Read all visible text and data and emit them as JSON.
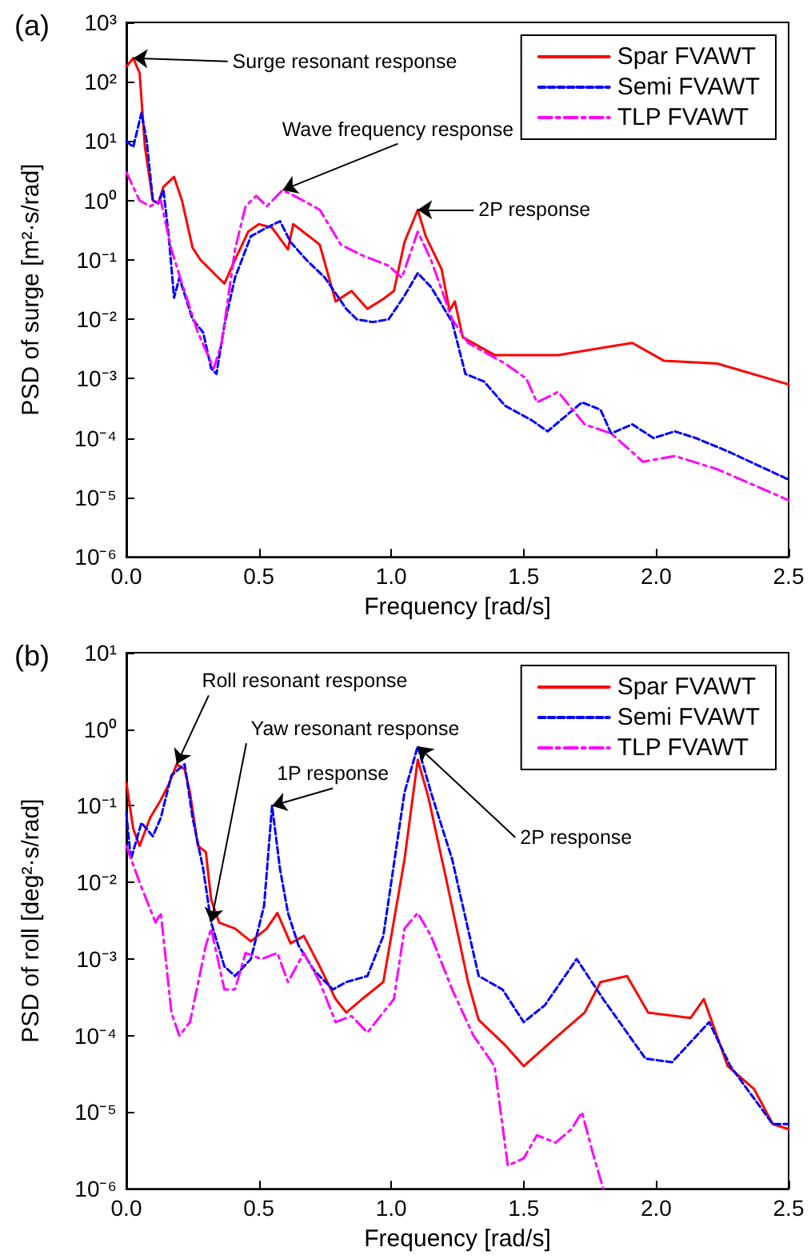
{
  "chart_data": [
    {
      "type": "line",
      "title": "(a)",
      "xlabel": "Frequency [rad/s]",
      "ylabel": "PSD of surge [m²·s/rad]",
      "xlim": [
        0,
        2.5
      ],
      "xticks": [
        {
          "value": 0,
          "label": "0.0"
        },
        {
          "value": 0.5,
          "label": "0.5"
        },
        {
          "value": 1,
          "label": "1.0"
        },
        {
          "value": 1.5,
          "label": "1.5"
        },
        {
          "value": 2,
          "label": "2.0"
        },
        {
          "value": 2.5,
          "label": "2.5"
        }
      ],
      "ylim": [
        1e-06,
        1000
      ],
      "yticks": [
        {
          "value": 1e-06,
          "label": "10⁻⁶"
        },
        {
          "value": 1e-05,
          "label": "10⁻⁵"
        },
        {
          "value": 0.0001,
          "label": "10⁻⁴"
        },
        {
          "value": 0.001,
          "label": "10⁻³"
        },
        {
          "value": 0.01,
          "label": "10⁻²"
        },
        {
          "value": 0.1,
          "label": "10⁻¹"
        },
        {
          "value": 1,
          "label": "10⁰"
        },
        {
          "value": 10,
          "label": "10¹"
        },
        {
          "value": 100,
          "label": "10²"
        },
        {
          "value": 1000,
          "label": "10³"
        }
      ],
      "log": "y",
      "grid": false,
      "legend": "top right",
      "marker": "none",
      "series": [
        {
          "name": "Spar FVAWT",
          "color": "#ff0000",
          "line_style": "solid",
          "x": [
            0,
            0.026,
            0.05,
            0.07,
            0.1,
            0.12,
            0.14,
            0.18,
            0.21,
            0.25,
            0.28,
            0.33,
            0.37,
            0.41,
            0.46,
            0.5,
            0.55,
            0.61,
            0.63,
            0.69,
            0.73,
            0.79,
            0.85,
            0.91,
            0.97,
            1.01,
            1.05,
            1.1,
            1.13,
            1.19,
            1.22,
            1.24,
            1.27,
            1.39,
            1.63,
            1.83,
            1.91,
            2.03,
            2.23,
            2.5
          ],
          "values": [
            180,
            250,
            140,
            8,
            1,
            0.9,
            1.7,
            2.5,
            1,
            0.16,
            0.1,
            0.06,
            0.04,
            0.1,
            0.3,
            0.4,
            0.35,
            0.15,
            0.4,
            0.25,
            0.18,
            0.02,
            0.03,
            0.015,
            0.022,
            0.03,
            0.2,
            0.7,
            0.25,
            0.07,
            0.014,
            0.02,
            0.005,
            0.0025,
            0.0025,
            0.0035,
            0.004,
            0.002,
            0.0018,
            0.0008
          ]
        },
        {
          "name": "Semi FVAWT",
          "color": "#0000ff",
          "line_style": "dashed",
          "x": [
            0,
            0.026,
            0.057,
            0.077,
            0.1,
            0.12,
            0.14,
            0.16,
            0.18,
            0.2,
            0.25,
            0.29,
            0.32,
            0.34,
            0.37,
            0.41,
            0.47,
            0.53,
            0.58,
            0.62,
            0.68,
            0.75,
            0.83,
            0.87,
            0.93,
            0.99,
            1.05,
            1.1,
            1.15,
            1.23,
            1.28,
            1.35,
            1.43,
            1.53,
            1.59,
            1.72,
            1.79,
            1.83,
            1.91,
            1.99,
            2.07,
            2.15,
            2.27,
            2.5
          ],
          "values": [
            10,
            8,
            30,
            10,
            1,
            0.9,
            1.5,
            0.25,
            0.023,
            0.05,
            0.01,
            0.006,
            0.0015,
            0.0012,
            0.008,
            0.05,
            0.25,
            0.35,
            0.45,
            0.2,
            0.1,
            0.05,
            0.015,
            0.01,
            0.009,
            0.01,
            0.025,
            0.06,
            0.035,
            0.009,
            0.0012,
            0.0009,
            0.00035,
            0.0002,
            0.00013,
            0.0004,
            0.0003,
            0.00012,
            0.00017,
            0.0001,
            0.00013,
            0.0001,
            6e-05,
            2e-05
          ]
        },
        {
          "name": "TLP FVAWT",
          "color": "#ff00ff",
          "line_style": "dashdot",
          "x": [
            0,
            0.05,
            0.09,
            0.13,
            0.17,
            0.21,
            0.27,
            0.3,
            0.33,
            0.36,
            0.41,
            0.45,
            0.49,
            0.53,
            0.59,
            0.65,
            0.73,
            0.81,
            0.89,
            0.99,
            1.04,
            1.1,
            1.15,
            1.23,
            1.29,
            1.43,
            1.51,
            1.55,
            1.63,
            1.73,
            1.83,
            1.95,
            2.07,
            2.23,
            2.5
          ],
          "values": [
            3,
            1,
            0.8,
            1,
            0.15,
            0.04,
            0.006,
            0.003,
            0.0015,
            0.004,
            0.15,
            0.8,
            1.2,
            0.8,
            1.5,
            1.1,
            0.7,
            0.18,
            0.12,
            0.08,
            0.05,
            0.3,
            0.1,
            0.01,
            0.004,
            0.0018,
            0.001,
            0.0004,
            0.0006,
            0.00017,
            0.00012,
            4e-05,
            5e-05,
            3e-05,
            9e-06
          ]
        }
      ],
      "annotations": [
        {
          "text": "Surge resonant response",
          "x": 0.026,
          "y": 250
        },
        {
          "text": "Wave frequency response",
          "x": 0.59,
          "y": 1.5
        },
        {
          "text": "2P response",
          "x": 1.1,
          "y": 0.7
        }
      ]
    },
    {
      "type": "line",
      "title": "(b)",
      "xlabel": "Frequency [rad/s]",
      "ylabel": "PSD of roll [deg²·s/rad]",
      "xlim": [
        0,
        2.5
      ],
      "xticks": [
        {
          "value": 0,
          "label": "0.0"
        },
        {
          "value": 0.5,
          "label": "0.5"
        },
        {
          "value": 1,
          "label": "1.0"
        },
        {
          "value": 1.5,
          "label": "1.5"
        },
        {
          "value": 2,
          "label": "2.0"
        },
        {
          "value": 2.5,
          "label": "2.5"
        }
      ],
      "ylim": [
        1e-06,
        10
      ],
      "yticks": [
        {
          "value": 1e-06,
          "label": "10⁻⁶"
        },
        {
          "value": 1e-05,
          "label": "10⁻⁵"
        },
        {
          "value": 0.0001,
          "label": "10⁻⁴"
        },
        {
          "value": 0.001,
          "label": "10⁻³"
        },
        {
          "value": 0.01,
          "label": "10⁻²"
        },
        {
          "value": 0.1,
          "label": "10⁻¹"
        },
        {
          "value": 1,
          "label": "10⁰"
        },
        {
          "value": 10,
          "label": "10¹"
        }
      ],
      "log": "y",
      "grid": false,
      "legend": "top right",
      "marker": "none",
      "series": [
        {
          "name": "Spar FVAWT",
          "color": "#ff0000",
          "line_style": "solid",
          "x": [
            0,
            0.026,
            0.05,
            0.09,
            0.13,
            0.16,
            0.19,
            0.22,
            0.24,
            0.27,
            0.3,
            0.32,
            0.35,
            0.41,
            0.47,
            0.53,
            0.57,
            0.62,
            0.67,
            0.73,
            0.79,
            0.83,
            0.89,
            0.97,
            1.05,
            1.1,
            1.14,
            1.21,
            1.29,
            1.33,
            1.43,
            1.5,
            1.63,
            1.73,
            1.79,
            1.89,
            1.97,
            2.13,
            2.18,
            2.27,
            2.37,
            2.44,
            2.5
          ],
          "values": [
            0.2,
            0.05,
            0.03,
            0.07,
            0.12,
            0.19,
            0.35,
            0.3,
            0.15,
            0.03,
            0.025,
            0.006,
            0.003,
            0.0025,
            0.0017,
            0.0025,
            0.004,
            0.0016,
            0.002,
            0.0008,
            0.0003,
            0.0002,
            0.0003,
            0.0005,
            0.02,
            0.4,
            0.13,
            0.01,
            0.0005,
            0.00016,
            7.5e-05,
            4e-05,
            0.0001,
            0.0002,
            0.0005,
            0.0006,
            0.0002,
            0.00017,
            0.0003,
            4e-05,
            2e-05,
            7e-06,
            6e-06
          ]
        },
        {
          "name": "Semi FVAWT",
          "color": "#0000ff",
          "line_style": "dashed",
          "x": [
            0,
            0.017,
            0.057,
            0.1,
            0.13,
            0.17,
            0.22,
            0.25,
            0.29,
            0.32,
            0.37,
            0.41,
            0.47,
            0.52,
            0.55,
            0.58,
            0.61,
            0.65,
            0.71,
            0.78,
            0.83,
            0.91,
            0.97,
            1.05,
            1.1,
            1.15,
            1.23,
            1.33,
            1.42,
            1.5,
            1.58,
            1.7,
            1.8,
            1.96,
            2.06,
            2.2,
            2.28,
            2.44,
            2.5
          ],
          "values": [
            0.08,
            0.02,
            0.06,
            0.04,
            0.07,
            0.25,
            0.35,
            0.07,
            0.015,
            0.003,
            0.0008,
            0.0006,
            0.001,
            0.005,
            0.1,
            0.015,
            0.004,
            0.0015,
            0.0007,
            0.0004,
            0.0005,
            0.0006,
            0.002,
            0.15,
            0.6,
            0.15,
            0.02,
            0.0006,
            0.0004,
            0.00015,
            0.00025,
            0.001,
            0.0003,
            5e-05,
            4.5e-05,
            0.00015,
            4e-05,
            7e-06,
            7e-06
          ]
        },
        {
          "name": "TLP FVAWT",
          "color": "#ff00ff",
          "line_style": "dashdot",
          "x": [
            0,
            0.05,
            0.11,
            0.13,
            0.17,
            0.2,
            0.24,
            0.3,
            0.32,
            0.37,
            0.41,
            0.45,
            0.51,
            0.57,
            0.61,
            0.67,
            0.73,
            0.79,
            0.85,
            0.91,
            1.01,
            1.05,
            1.1,
            1.15,
            1.23,
            1.31,
            1.39,
            1.44,
            1.5,
            1.55,
            1.62,
            1.68,
            1.72,
            1.76,
            1.8
          ],
          "values": [
            0.03,
            0.01,
            0.003,
            0.004,
            0.0002,
            0.0001,
            0.00015,
            0.0015,
            0.0025,
            0.0004,
            0.0004,
            0.0012,
            0.001,
            0.0012,
            0.0005,
            0.0012,
            0.0005,
            0.00015,
            0.00018,
            0.00011,
            0.0003,
            0.0025,
            0.004,
            0.002,
            0.0004,
            0.0001,
            4e-05,
            2e-06,
            2.5e-06,
            5e-06,
            4e-06,
            6e-06,
            1e-05,
            3e-06,
            1e-06
          ]
        }
      ],
      "annotations": [
        {
          "text": "Roll resonant response",
          "x": 0.19,
          "y": 0.35
        },
        {
          "text": "Yaw resonant response",
          "x": 0.32,
          "y": 0.003
        },
        {
          "text": "1P response",
          "x": 0.55,
          "y": 0.1
        },
        {
          "text": "2P response",
          "x": 1.1,
          "y": 0.6
        }
      ]
    }
  ]
}
